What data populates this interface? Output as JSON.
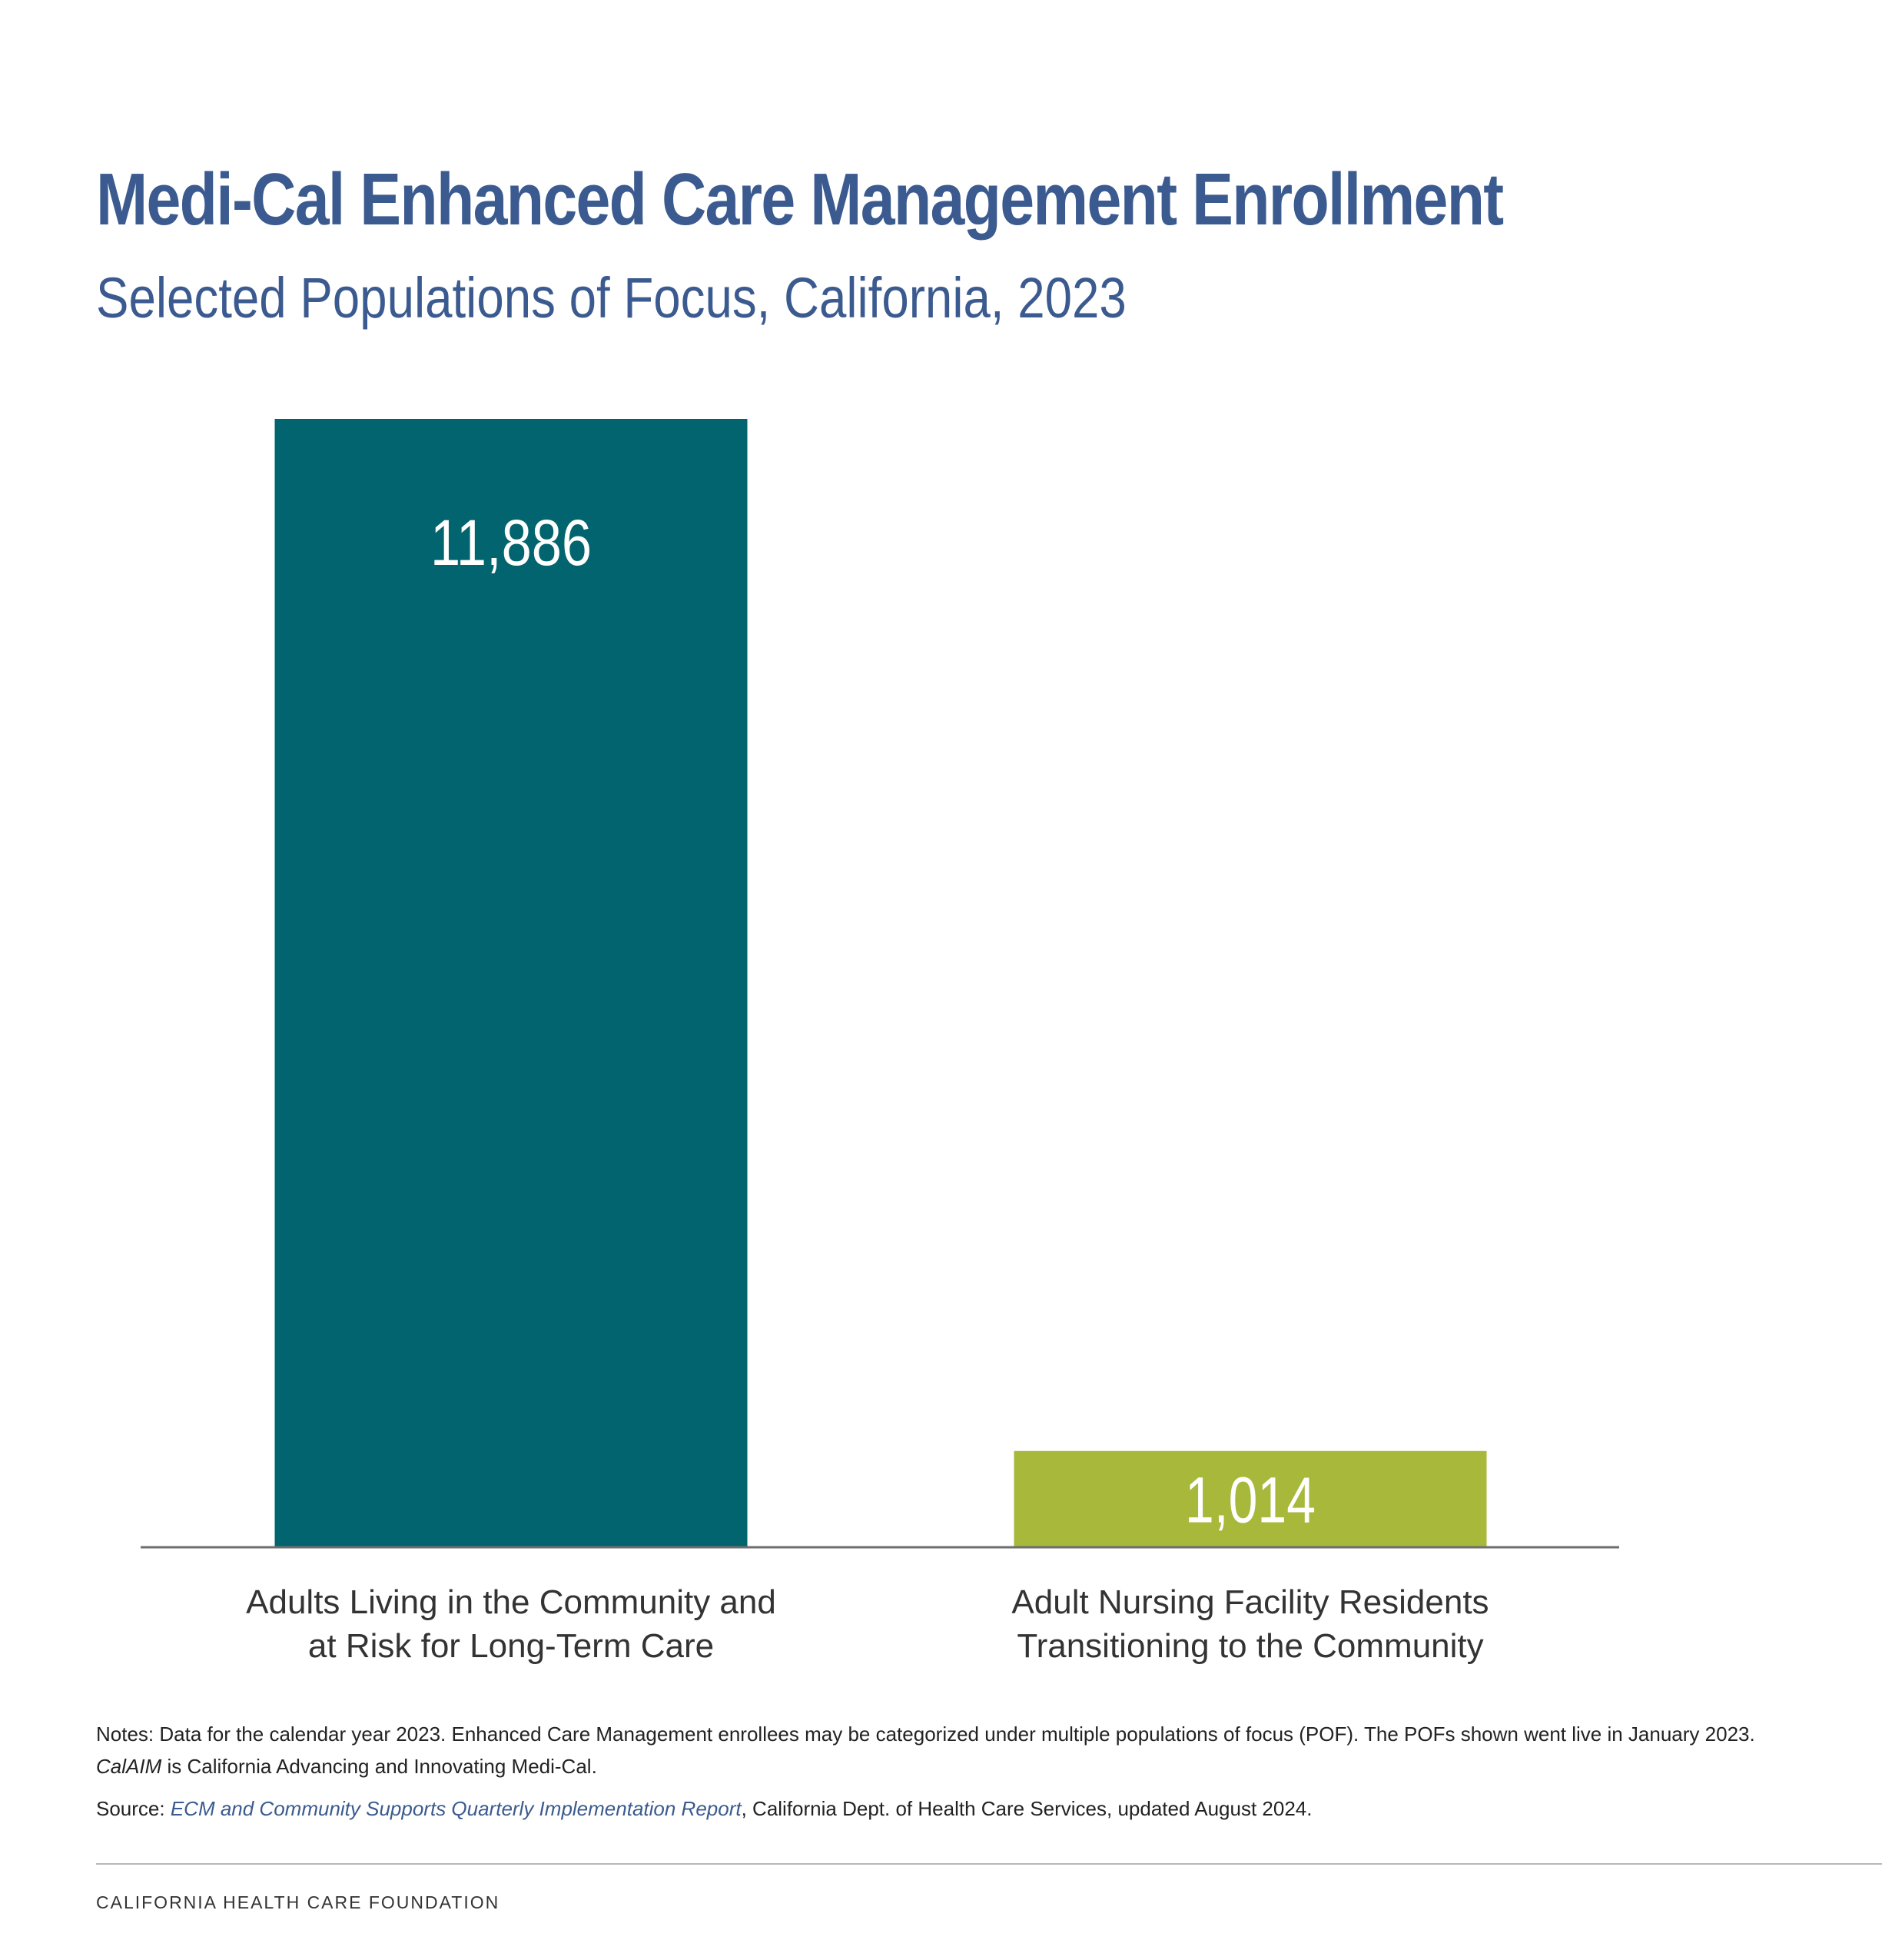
{
  "header": {
    "title": "Medi-Cal Enhanced Care Management Enrollment",
    "subtitle": "Selected Populations of Focus, California, 2023"
  },
  "chart_data": {
    "type": "bar",
    "title": "Medi-Cal Enhanced Care Management Enrollment",
    "subtitle": "Selected Populations of Focus, California, 2023",
    "categories": [
      [
        "Adults Living in the Community and",
        "at Risk for Long-Term Care"
      ],
      [
        "Adult Nursing Facility Residents",
        "Transitioning to the Community"
      ]
    ],
    "values": [
      11886,
      1014
    ],
    "value_labels": [
      "11,886",
      "1,014"
    ],
    "colors": [
      "#02646e",
      "#a8b83a"
    ],
    "label_color": "#ffffff",
    "xlabel": "",
    "ylabel": "",
    "ylim": [
      0,
      11886
    ],
    "grid": false,
    "legend": "none"
  },
  "notes": {
    "part1": "Notes: Data for the calendar year 2023. Enhanced Care Management enrollees may be categorized under multiple populations of focus (POF). The POFs shown went live in January 2023. ",
    "italic_term": "CalAIM",
    "part2": " is California Advancing and Innovating Medi-Cal."
  },
  "source": {
    "prefix": "Source: ",
    "link_text": "ECM and Community Supports Quarterly Implementation Report",
    "suffix": ", California Dept. of Health Care Services, updated August 2024."
  },
  "footer": {
    "organization": "CALIFORNIA HEALTH CARE FOUNDATION"
  }
}
